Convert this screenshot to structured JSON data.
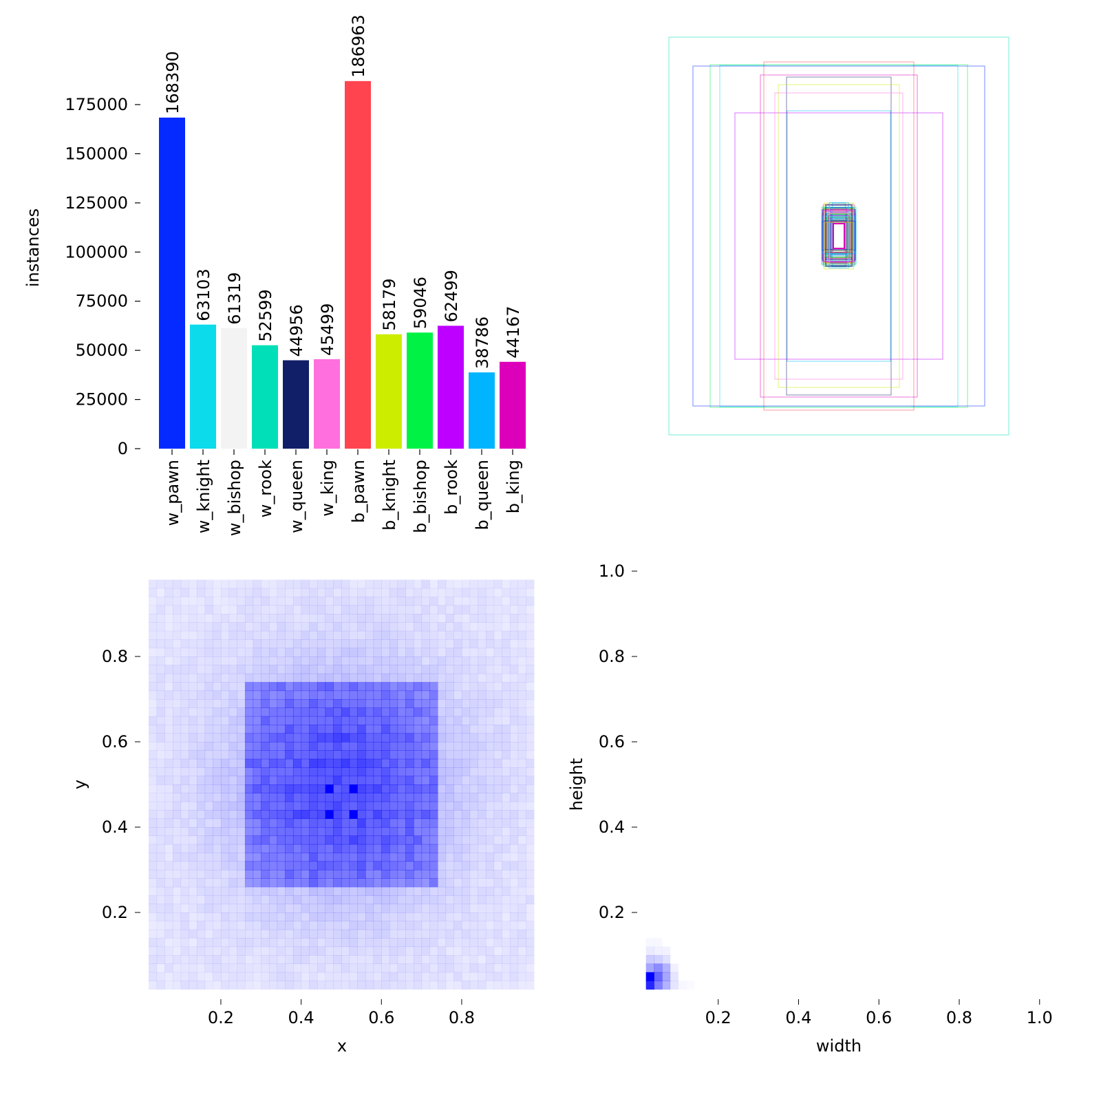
{
  "chart_data": [
    {
      "type": "bar",
      "ylabel": "instances",
      "categories": [
        "w_pawn",
        "w_knight",
        "w_bishop",
        "w_rook",
        "w_queen",
        "w_king",
        "b_pawn",
        "b_knight",
        "b_bishop",
        "b_rook",
        "b_queen",
        "b_king"
      ],
      "values": [
        168390,
        63103,
        61319,
        52599,
        44956,
        45499,
        186963,
        58179,
        59046,
        62499,
        38786,
        44167
      ],
      "colors": [
        "#042aff",
        "#0bdbeb",
        "#f3f3f3",
        "#00dfb7",
        "#111f68",
        "#ff6fdd",
        "#ff444f",
        "#cced00",
        "#00f344",
        "#bd00ff",
        "#00b4ff",
        "#dd00ba"
      ],
      "yticks": [
        0,
        25000,
        50000,
        75000,
        100000,
        125000,
        150000,
        175000
      ],
      "ytick_labels": [
        "0",
        "25000",
        "50000",
        "75000",
        "100000",
        "125000",
        "150000",
        "175000"
      ],
      "ylim": [
        0,
        195000
      ],
      "data_labels": true
    },
    {
      "type": "boxes-overlay",
      "note_colors": "class colors"
    },
    {
      "type": "heatmap",
      "xlabel": "x",
      "ylabel": "y",
      "xticks": [
        "0.2",
        "0.4",
        "0.6",
        "0.8"
      ],
      "yticks": [
        "0.2",
        "0.4",
        "0.6",
        "0.8"
      ],
      "xlim": [
        0,
        1
      ],
      "ylim": [
        0,
        1
      ],
      "color": "#0000ff"
    },
    {
      "type": "heatmap",
      "xlabel": "width",
      "ylabel": "height",
      "xticks": [
        "0.2",
        "0.4",
        "0.6",
        "0.8",
        "1.0"
      ],
      "yticks": [
        "0.2",
        "0.4",
        "0.6",
        "0.8",
        "1.0"
      ],
      "xlim": [
        0,
        1
      ],
      "ylim": [
        0,
        1
      ],
      "color": "#0000ff"
    }
  ]
}
